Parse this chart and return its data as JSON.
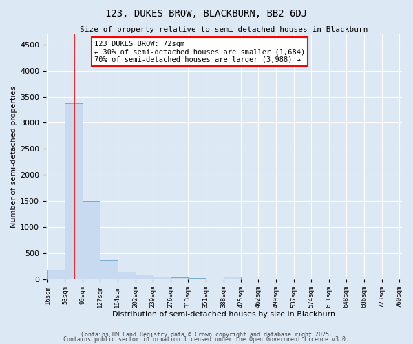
{
  "title": "123, DUKES BROW, BLACKBURN, BB2 6DJ",
  "subtitle": "Size of property relative to semi-detached houses in Blackburn",
  "xlabel": "Distribution of semi-detached houses by size in Blackburn",
  "ylabel": "Number of semi-detached properties",
  "bar_color": "#c8daf0",
  "bar_edge_color": "#7aabcc",
  "background_color": "#dde8f5",
  "grid_color": "#ffffff",
  "red_line_x": 72,
  "annotation_text": "123 DUKES BROW: 72sqm\n← 30% of semi-detached houses are smaller (1,684)\n70% of semi-detached houses are larger (3,988) →",
  "footer_text1": "Contains HM Land Registry data © Crown copyright and database right 2025.",
  "footer_text2": "Contains public sector information licensed under the Open Government Licence v3.0.",
  "bins": [
    16,
    53,
    90,
    127,
    164,
    202,
    239,
    276,
    313,
    351,
    388,
    425,
    462,
    499,
    537,
    574,
    611,
    648,
    686,
    723,
    760
  ],
  "counts": [
    185,
    3380,
    1500,
    365,
    145,
    90,
    55,
    35,
    20,
    0,
    50,
    0,
    0,
    0,
    0,
    0,
    0,
    0,
    0,
    0
  ],
  "ylim": [
    0,
    4700
  ],
  "yticks": [
    0,
    500,
    1000,
    1500,
    2000,
    2500,
    3000,
    3500,
    4000,
    4500
  ]
}
